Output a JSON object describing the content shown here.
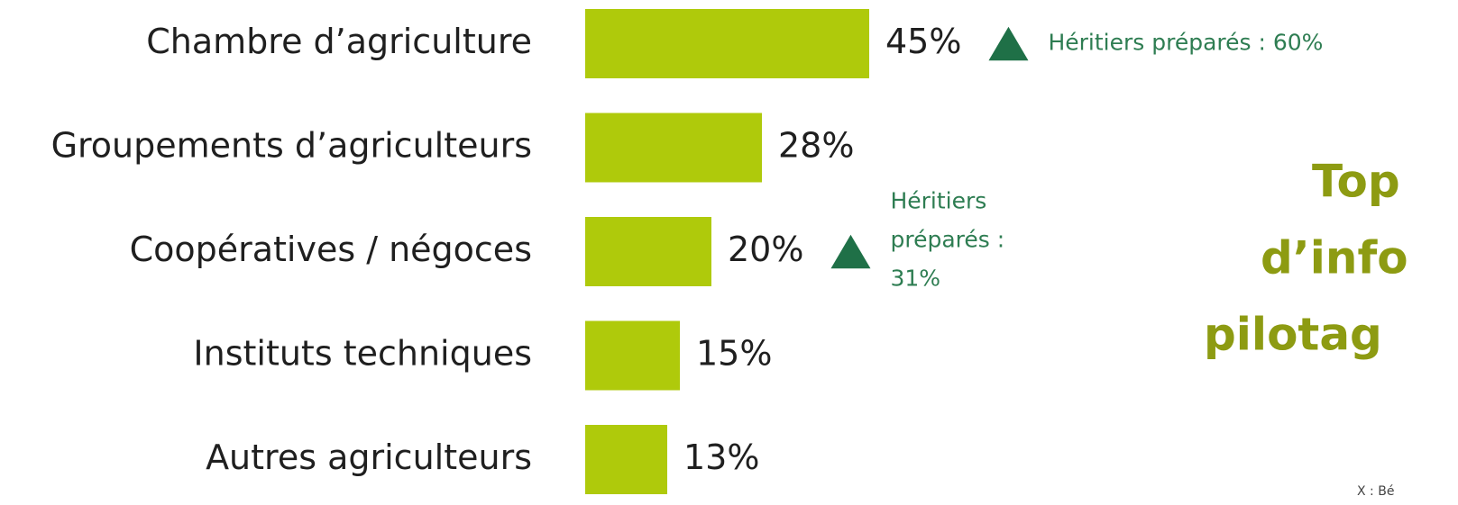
{
  "chart_data": {
    "type": "bar",
    "orientation": "horizontal",
    "title_lines": [
      "Top",
      "d’info",
      "pilotag"
    ],
    "categories": [
      "Chambre d’agriculture",
      "Groupements d’agriculteurs",
      "Coopératives / négoces",
      "Instituts techniques",
      "Autres agriculteurs"
    ],
    "values": [
      45,
      28,
      20,
      15,
      13
    ],
    "value_labels": [
      "45%",
      "28%",
      "20%",
      "15%",
      "13%"
    ],
    "color": "#afca0b",
    "annotations": [
      {
        "lines": [
          "Héritiers préparés : 60%"
        ],
        "color": "#1f7047"
      },
      {
        "lines": [
          "Héritiers",
          "préparés :",
          "31%"
        ],
        "color": "#1f7047"
      }
    ],
    "footnote": "X : Bé"
  }
}
